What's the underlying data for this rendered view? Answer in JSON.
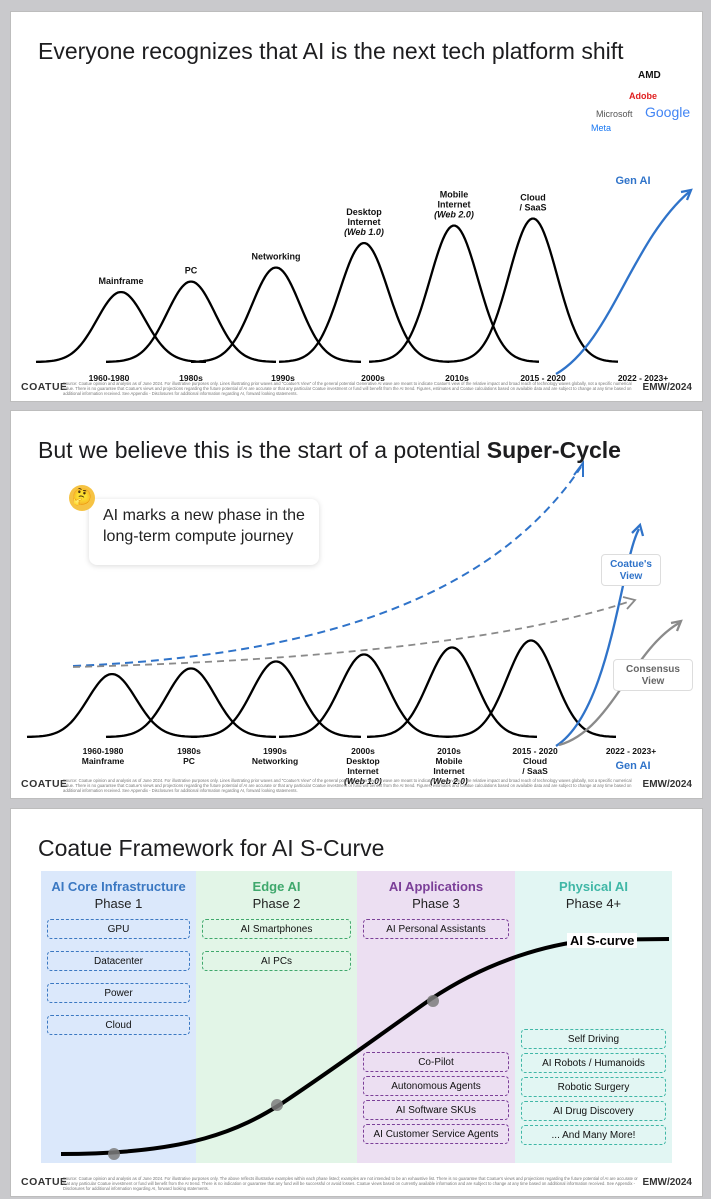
{
  "slide1": {
    "title": "Everyone recognizes that AI is the next tech platform shift",
    "logos": {
      "amd": "AMD",
      "adobe": "Adobe",
      "microsoft": "Microsoft",
      "google": "Google",
      "meta": "Meta"
    },
    "footer_brand": "COATUE",
    "footer_note": "Source: Coatue opinion and analysis as of June 2024. For illustrative purposes only. Lines illustrating prior waves and \"Coatue's View\" of the general potential Generative AI wave are meant to indicate Coatue's view of the relative impact and broad reach of technology waves globally, not a specific numerical value. There is no guarantee that Coatue's views and projections regarding the future potential of AI are accurate or that any particular Coatue investment or fund will benefit from the AI trend. Figures, estimates and Coatue calculations based on available data and are subject to change at any time based on additional information received. See Appendix - Disclosures for additional information regarding AI, forward looking statements.",
    "footer_emw": "EMW/2024"
  },
  "slide2": {
    "title_prefix": "But we believe this is the start of a potential ",
    "title_bold": "Super-Cycle",
    "note": "AI marks a new phase in the long-term compute journey",
    "emoji": "🤔",
    "coatues_view": "Coatue's View",
    "consensus_view": "Consensus View",
    "footer_brand": "COATUE",
    "footer_note": "Source: Coatue opinion and analysis as of June 2024. For illustrative purposes only. Lines illustrating prior waves and \"Coatue's View\" of the general potential Generative AI wave are meant to indicate Coatue's view of the relative impact and broad reach of technology waves globally, not a specific numerical value. There is no guarantee that Coatue's views and projections regarding the future potential of AI are accurate or that any particular Coatue investment or fund will benefit from the AI trend. Figures, estimates and Coatue calculations based on available data and are subject to change at any time based on additional information received. See Appendix - Disclosures for additional information regarding AI, forward looking statements.",
    "footer_emw": "EMW/2024"
  },
  "slide3": {
    "title": "Coatue Framework for AI S-Curve",
    "scurve_label": "AI S-curve",
    "phases": [
      {
        "title": "AI Core Infrastructure",
        "sub": "Phase 1",
        "items": [
          "GPU",
          "Datacenter",
          "Power",
          "Cloud"
        ],
        "color": "#3b78c2",
        "bg": "#dbe8fb"
      },
      {
        "title": "Edge AI",
        "sub": "Phase 2",
        "items": [
          "AI Smartphones",
          "AI PCs"
        ],
        "color": "#3fa86c",
        "bg": "#e2f5e7"
      },
      {
        "title": "AI Applications",
        "sub": "Phase 3",
        "items": [
          "AI Personal Assistants",
          "Co-Pilot",
          "Autonomous Agents",
          "AI Software SKUs",
          "AI Customer Service Agents"
        ],
        "color": "#7b3f98",
        "bg": "#ecdff2"
      },
      {
        "title": "Physical AI",
        "sub": "Phase 4+",
        "items": [
          "Self Driving",
          "AI Robots / Humanoids",
          "Robotic Surgery",
          "AI Drug Discovery",
          "... And Many More!"
        ],
        "color": "#3fb7a6",
        "bg": "#e2f6f3"
      }
    ],
    "footer_brand": "COATUE",
    "footer_note": "Source: Coatue opinion and analysis as of June 2024. For illustrative purposes only. The above reflects illustrative examples within each phase listed; examples are not intended to be an exhaustive list. There is no guarantee that Coatue's views and projections regarding the future potential of AI are accurate or that any particular Coatue investment or fund will benefit from the AI trend. There is no indication or guarantee that any fund will be successful or avoid losses. Coatue views based on currently available information and are subject to change at any time based on additional information received. See Appendix - Disclosures for additional information regarding AI, forward looking statements.",
    "footer_emw": "EMW/2024"
  },
  "colors": {
    "blue": "#2f73c9",
    "gray": "#8a8a8a",
    "black": "#000000"
  },
  "chart_data": [
    {
      "type": "line",
      "title": "Everyone recognizes that AI is the next tech platform shift",
      "x": [
        "1960-1980",
        "1980s",
        "1990s",
        "2000s",
        "2010s",
        "2015 - 2020",
        "2022 - 2023+"
      ],
      "series": [
        {
          "name": "Mainframe",
          "peak": 1.0
        },
        {
          "name": "PC",
          "peak": 1.15
        },
        {
          "name": "Networking",
          "peak": 1.35
        },
        {
          "name": "Desktop Internet (Web 1.0)",
          "peak": 1.7
        },
        {
          "name": "Mobile Internet (Web 2.0)",
          "peak": 1.95
        },
        {
          "name": "Cloud / SaaS",
          "peak": 2.05
        },
        {
          "name": "Gen AI",
          "peak": 2.45
        }
      ]
    },
    {
      "type": "line",
      "title": "But we believe this is the start of a potential Super-Cycle",
      "x": [
        "1960-1980",
        "1980s",
        "1990s",
        "2000s",
        "2010s",
        "2015 - 2020",
        "2022 - 2023+"
      ],
      "tick_labels": [
        "Mainframe",
        "PC",
        "Networking",
        "Desktop Internet (Web 1.0)",
        "Mobile Internet (Web 2.0)",
        "Cloud / SaaS",
        "Gen AI"
      ],
      "series": [
        {
          "name": "Waves",
          "peaks": [
            0.9,
            0.98,
            1.08,
            1.18,
            1.28,
            1.38
          ]
        },
        {
          "name": "Super-Cycle (Coatue)",
          "style": "dashed-blue"
        },
        {
          "name": "Consensus trend",
          "style": "dashed-gray"
        },
        {
          "name": "Coatue's View",
          "peak": 3.0
        },
        {
          "name": "Consensus View",
          "peak": 1.9
        }
      ]
    },
    {
      "type": "line",
      "title": "Coatue Framework for AI S-Curve",
      "x": [
        "Phase 1",
        "Phase 2",
        "Phase 3",
        "Phase 4+"
      ],
      "series": [
        {
          "name": "AI S-curve",
          "markers": [
            "Phase 1",
            "Phase 2",
            "Phase 3"
          ]
        }
      ]
    }
  ]
}
